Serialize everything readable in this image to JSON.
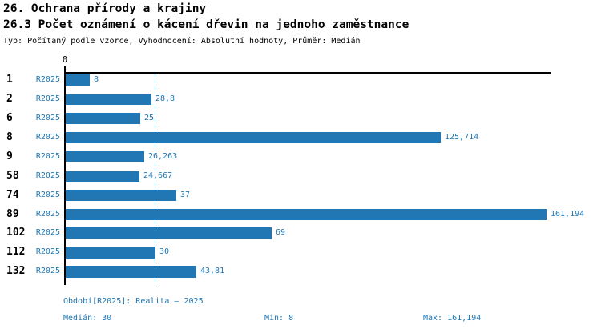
{
  "header": {
    "title_line1": "26. Ochrana přírody a krajiny",
    "title_line2": "26.3 Počet oznámení o kácení dřevin na jednoho zaměstnance",
    "subtitle": "Typ: Počítaný podle vzorce, Vyhodnocení: Absolutní hodnoty, Průměr: Medián"
  },
  "chart_data": {
    "type": "bar",
    "orientation": "horizontal",
    "series_label": "R2025",
    "categories": [
      "1",
      "2",
      "6",
      "8",
      "9",
      "58",
      "74",
      "89",
      "102",
      "112",
      "132"
    ],
    "values": [
      8,
      28.8,
      25,
      125.714,
      26.263,
      24.667,
      37,
      161.194,
      69,
      30,
      43.81
    ],
    "value_labels": [
      "8",
      "28,8",
      "25",
      "125,714",
      "26,263",
      "24,667",
      "37",
      "161,194",
      "69",
      "30",
      "43,81"
    ],
    "axis": {
      "zero_label": "0",
      "xmin": 0,
      "xmax": 163,
      "grid": false
    },
    "median_value": 30,
    "bar_color": "#2077b4",
    "text_color": "#2077b4",
    "axis_color": "#000000",
    "legend_position": "none"
  },
  "footer": {
    "period": "Období[R2025]: Realita – 2025",
    "median": "Medián: 30",
    "min": "Min: 8",
    "max": "Max: 161,194"
  }
}
